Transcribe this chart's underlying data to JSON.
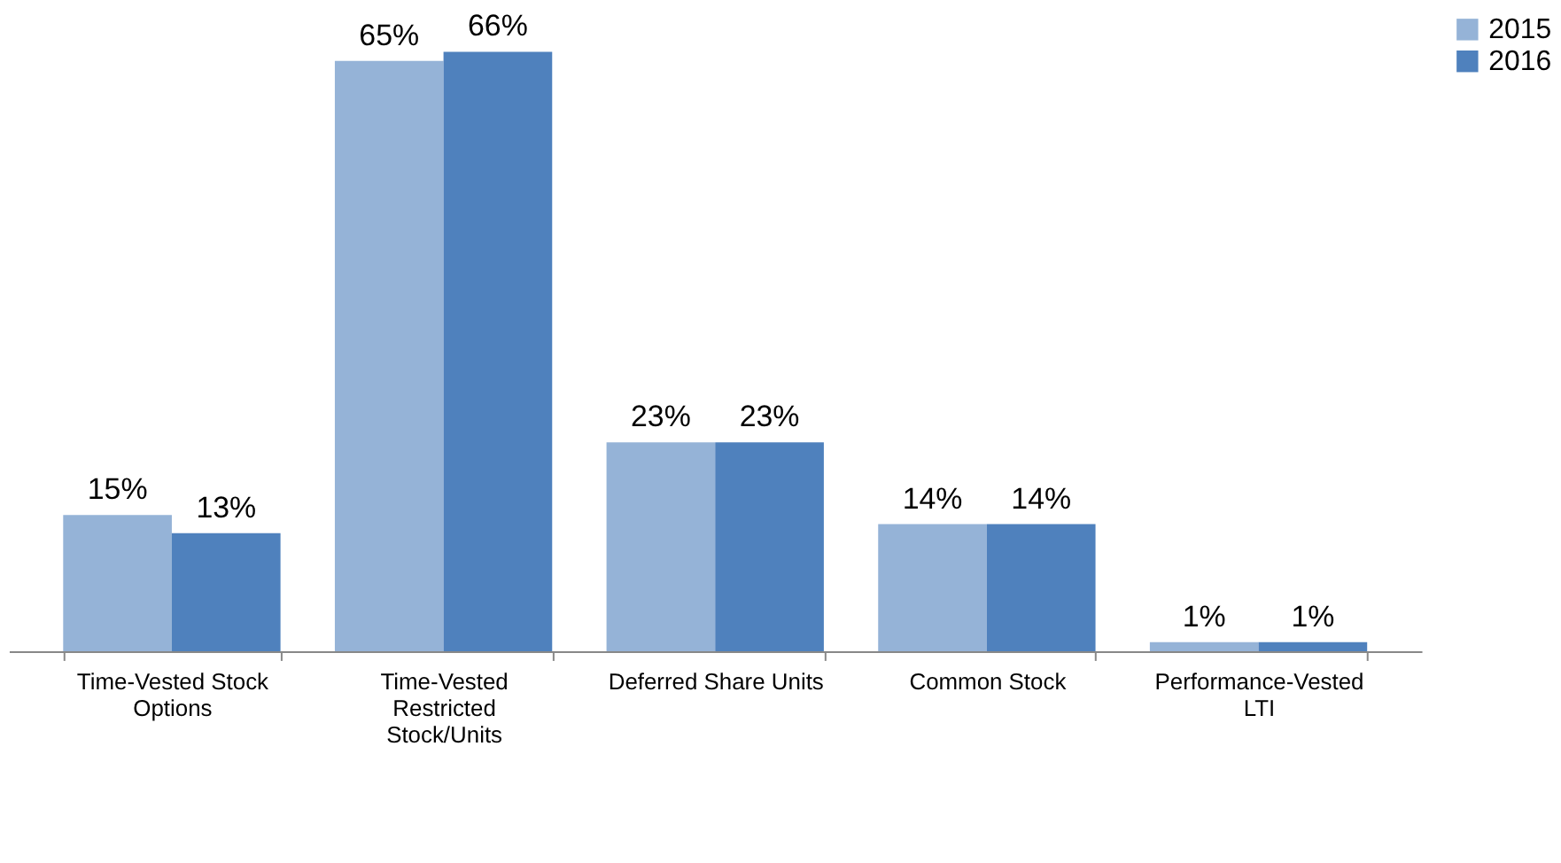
{
  "chart_data": {
    "type": "bar",
    "categories": [
      "Time-Vested Stock Options",
      "Time-Vested Restricted Stock/Units",
      "Deferred Share Units",
      "Common Stock",
      "Performance-Vested LTI"
    ],
    "series": [
      {
        "name": "2015",
        "color": "#95b3d7",
        "values": [
          15,
          65,
          23,
          14,
          1
        ],
        "value_labels": [
          "15%",
          "65%",
          "23%",
          "14%",
          "1%"
        ]
      },
      {
        "name": "2016",
        "color": "#4f81bd",
        "values": [
          13,
          66,
          23,
          14,
          1
        ],
        "value_labels": [
          "13%",
          "66%",
          "23%",
          "14%",
          "1%"
        ]
      }
    ],
    "legend": "top right",
    "grid": false
  }
}
